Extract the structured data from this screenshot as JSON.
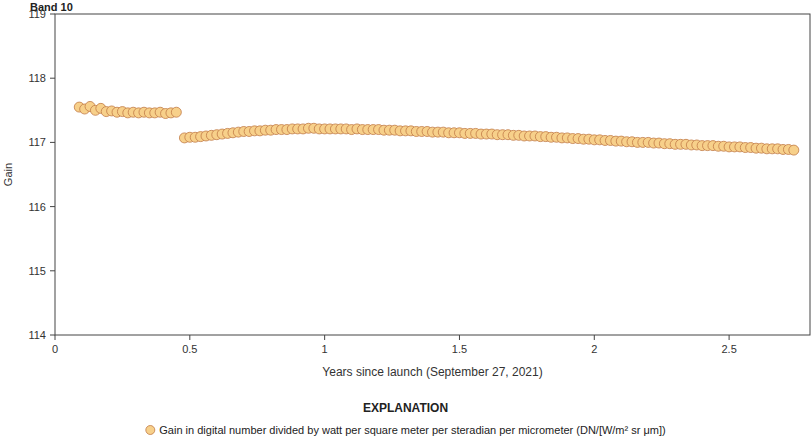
{
  "chart_data": {
    "type": "scatter",
    "title": "Band 10",
    "x_label": "Years since launch (September 27, 2021)",
    "y_label": "Gain",
    "legend_title": "EXPLANATION",
    "legend": "bottom",
    "grid": false,
    "xlim": [
      0,
      2.8
    ],
    "ylim": [
      114,
      119
    ],
    "xticks": [
      0,
      0.5,
      1,
      1.5,
      2,
      2.5
    ],
    "yticks": [
      114,
      115,
      116,
      117,
      118,
      119
    ],
    "x": [
      0.09,
      0.11,
      0.13,
      0.15,
      0.17,
      0.19,
      0.21,
      0.23,
      0.25,
      0.27,
      0.29,
      0.31,
      0.33,
      0.35,
      0.37,
      0.39,
      0.41,
      0.43,
      0.45,
      0.48,
      0.5,
      0.52,
      0.54,
      0.56,
      0.58,
      0.6,
      0.62,
      0.64,
      0.66,
      0.68,
      0.7,
      0.72,
      0.74,
      0.76,
      0.78,
      0.8,
      0.82,
      0.84,
      0.86,
      0.88,
      0.9,
      0.92,
      0.94,
      0.96,
      0.98,
      1,
      1.02,
      1.04,
      1.06,
      1.08,
      1.1,
      1.12,
      1.14,
      1.16,
      1.18,
      1.2,
      1.22,
      1.24,
      1.26,
      1.28,
      1.3,
      1.32,
      1.34,
      1.36,
      1.38,
      1.4,
      1.42,
      1.44,
      1.46,
      1.48,
      1.5,
      1.52,
      1.54,
      1.56,
      1.58,
      1.6,
      1.62,
      1.64,
      1.66,
      1.68,
      1.7,
      1.72,
      1.74,
      1.76,
      1.78,
      1.8,
      1.82,
      1.84,
      1.86,
      1.88,
      1.9,
      1.92,
      1.94,
      1.96,
      1.98,
      2,
      2.02,
      2.04,
      2.06,
      2.08,
      2.1,
      2.12,
      2.14,
      2.16,
      2.18,
      2.2,
      2.22,
      2.24,
      2.26,
      2.28,
      2.3,
      2.32,
      2.34,
      2.36,
      2.38,
      2.4,
      2.42,
      2.44,
      2.46,
      2.48,
      2.5,
      2.52,
      2.54,
      2.56,
      2.58,
      2.6,
      2.62,
      2.64,
      2.66,
      2.68,
      2.7,
      2.72,
      2.74
    ],
    "series": [
      {
        "name": "Gain in digital number divided by watt per square meter per steradian per micrometer (DN/[W/m² sr μm])",
        "color": "#f7d08a",
        "marker": "circle",
        "values": [
          117.55,
          117.52,
          117.56,
          117.5,
          117.53,
          117.48,
          117.49,
          117.47,
          117.48,
          117.46,
          117.47,
          117.46,
          117.47,
          117.46,
          117.46,
          117.47,
          117.45,
          117.46,
          117.47,
          117.07,
          117.08,
          117.08,
          117.09,
          117.1,
          117.11,
          117.12,
          117.13,
          117.14,
          117.15,
          117.16,
          117.17,
          117.17,
          117.18,
          117.18,
          117.19,
          117.19,
          117.2,
          117.2,
          117.2,
          117.21,
          117.21,
          117.21,
          117.22,
          117.22,
          117.21,
          117.21,
          117.21,
          117.21,
          117.21,
          117.21,
          117.2,
          117.21,
          117.2,
          117.2,
          117.2,
          117.2,
          117.19,
          117.19,
          117.19,
          117.18,
          117.18,
          117.18,
          117.17,
          117.17,
          117.17,
          117.16,
          117.16,
          117.16,
          117.15,
          117.15,
          117.15,
          117.14,
          117.14,
          117.14,
          117.13,
          117.13,
          117.13,
          117.12,
          117.12,
          117.12,
          117.11,
          117.11,
          117.1,
          117.1,
          117.1,
          117.09,
          117.09,
          117.08,
          117.08,
          117.07,
          117.07,
          117.06,
          117.06,
          117.05,
          117.05,
          117.04,
          117.04,
          117.03,
          117.03,
          117.02,
          117.02,
          117.01,
          117.01,
          117,
          117,
          117,
          116.99,
          116.99,
          116.98,
          116.98,
          116.97,
          116.97,
          116.97,
          116.96,
          116.96,
          116.95,
          116.95,
          116.95,
          116.94,
          116.94,
          116.93,
          116.93,
          116.93,
          116.92,
          116.92,
          116.91,
          116.91,
          116.9,
          116.9,
          116.9,
          116.89,
          116.89,
          116.88
        ]
      }
    ]
  }
}
